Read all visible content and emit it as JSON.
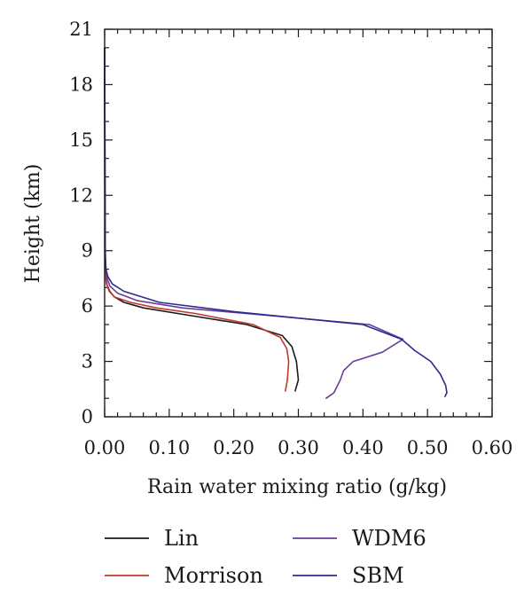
{
  "chart_data": {
    "type": "line",
    "xlabel": "Rain water mixing ratio (g/kg)",
    "ylabel": "Height (km)",
    "xlim": [
      0,
      0.6
    ],
    "ylim": [
      0,
      21
    ],
    "xticks": [
      "0.00",
      "0.10",
      "0.20",
      "0.30",
      "0.40",
      "0.50",
      "0.60"
    ],
    "yticks": [
      "0",
      "3",
      "6",
      "9",
      "12",
      "15",
      "18",
      "21"
    ],
    "grid": false,
    "legend_position": "bottom",
    "series": [
      {
        "name": "Lin",
        "color": "#1a1a1a",
        "x": [
          0.295,
          0.3,
          0.297,
          0.29,
          0.275,
          0.22,
          0.13,
          0.06,
          0.03,
          0.015,
          0.008,
          0.004,
          0.002,
          0.001,
          0.0005,
          0
        ],
        "y": [
          1.4,
          2.0,
          3.0,
          3.8,
          4.4,
          5.0,
          5.5,
          5.9,
          6.2,
          6.5,
          6.8,
          7.1,
          7.5,
          8.0,
          9.0,
          20.0
        ]
      },
      {
        "name": "Morrison",
        "color": "#c0392b",
        "x": [
          0.28,
          0.283,
          0.285,
          0.282,
          0.272,
          0.23,
          0.14,
          0.08,
          0.04,
          0.015,
          0.007,
          0.003,
          0.0015,
          0.0005,
          0
        ],
        "y": [
          1.4,
          2.0,
          3.0,
          3.7,
          4.3,
          5.0,
          5.6,
          5.9,
          6.2,
          6.5,
          6.8,
          7.2,
          7.6,
          8.5,
          20.0
        ]
      },
      {
        "name": "WDM6",
        "color": "#6a3d9a",
        "x": [
          0.343,
          0.355,
          0.365,
          0.37,
          0.385,
          0.43,
          0.462,
          0.41,
          0.25,
          0.12,
          0.05,
          0.02,
          0.008,
          0.003,
          0.001,
          0
        ],
        "y": [
          1.0,
          1.3,
          2.0,
          2.5,
          3.0,
          3.5,
          4.2,
          5.0,
          5.5,
          5.9,
          6.3,
          6.7,
          7.1,
          7.6,
          8.5,
          20.0
        ]
      },
      {
        "name": "SBM",
        "color": "#2e2a8f",
        "x": [
          0.527,
          0.53,
          0.528,
          0.52,
          0.505,
          0.48,
          0.46,
          0.4,
          0.2,
          0.085,
          0.03,
          0.012,
          0.005,
          0.002,
          0.001,
          0
        ],
        "y": [
          1.1,
          1.3,
          1.7,
          2.3,
          3.0,
          3.6,
          4.2,
          5.0,
          5.7,
          6.2,
          6.8,
          7.2,
          7.6,
          8.0,
          9.0,
          20.0
        ]
      }
    ]
  }
}
